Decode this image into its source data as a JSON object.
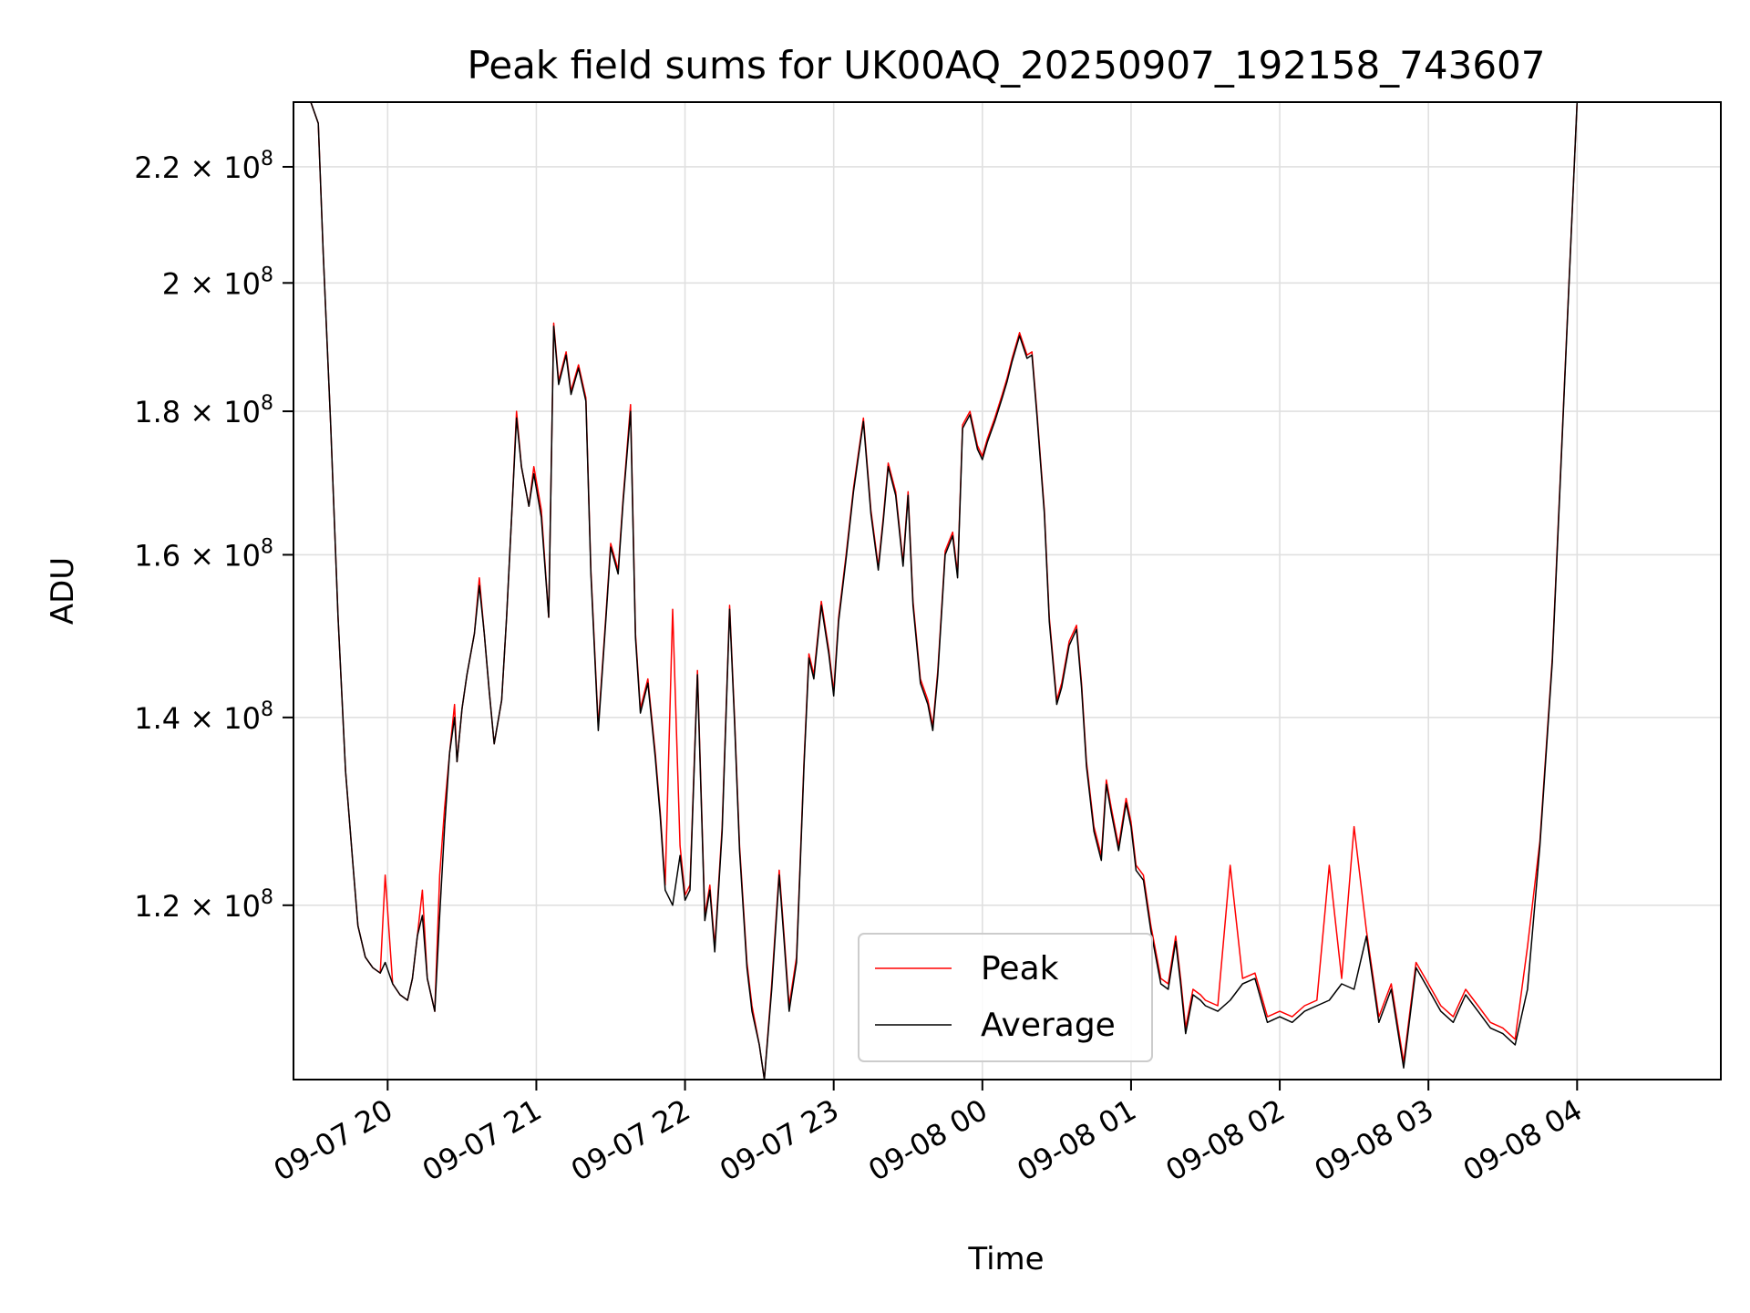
{
  "chart_data": {
    "type": "line",
    "title": "Peak field sums for UK00AQ_20250907_192158_743607",
    "xlabel": "Time",
    "ylabel": "ADU",
    "y_scale": "log",
    "ylim": [
      104000000,
      232000000
    ],
    "xlim": [
      "2025-09-07 19:22",
      "2025-09-08 04:58"
    ],
    "grid": true,
    "legend_position": "lower-center",
    "x_ticks": [
      {
        "label": "09-07 20",
        "time": "2025-09-07 20:00"
      },
      {
        "label": "09-07 21",
        "time": "2025-09-07 21:00"
      },
      {
        "label": "09-07 22",
        "time": "2025-09-07 22:00"
      },
      {
        "label": "09-07 23",
        "time": "2025-09-07 23:00"
      },
      {
        "label": "09-08 00",
        "time": "2025-09-08 00:00"
      },
      {
        "label": "09-08 01",
        "time": "2025-09-08 01:00"
      },
      {
        "label": "09-08 02",
        "time": "2025-09-08 02:00"
      },
      {
        "label": "09-08 03",
        "time": "2025-09-08 03:00"
      },
      {
        "label": "09-08 04",
        "time": "2025-09-08 04:00"
      }
    ],
    "y_ticks": [
      {
        "mantissa": "1.2",
        "exponent": "8",
        "value": 120000000
      },
      {
        "mantissa": "1.4",
        "exponent": "8",
        "value": 140000000
      },
      {
        "mantissa": "1.6",
        "exponent": "8",
        "value": 160000000
      },
      {
        "mantissa": "1.8",
        "exponent": "8",
        "value": 180000000
      },
      {
        "mantissa": "2",
        "exponent": "8",
        "value": 200000000
      },
      {
        "mantissa": "2.2",
        "exponent": "8",
        "value": 220000000
      }
    ],
    "times_x": [
      "2025-09-07 19:29",
      "2025-09-07 19:32",
      "2025-09-07 19:34",
      "2025-09-07 19:37",
      "2025-09-07 19:40",
      "2025-09-07 19:43",
      "2025-09-07 19:46",
      "2025-09-07 19:48",
      "2025-09-07 19:51",
      "2025-09-07 19:54",
      "2025-09-07 19:57",
      "2025-09-07 19:59",
      "2025-09-07 20:02",
      "2025-09-07 20:05",
      "2025-09-07 20:08",
      "2025-09-07 20:10",
      "2025-09-07 20:12",
      "2025-09-07 20:14",
      "2025-09-07 20:16",
      "2025-09-07 20:19",
      "2025-09-07 20:21",
      "2025-09-07 20:23",
      "2025-09-07 20:25",
      "2025-09-07 20:27",
      "2025-09-07 20:28",
      "2025-09-07 20:30",
      "2025-09-07 20:32",
      "2025-09-07 20:35",
      "2025-09-07 20:37",
      "2025-09-07 20:39",
      "2025-09-07 20:41",
      "2025-09-07 20:43",
      "2025-09-07 20:46",
      "2025-09-07 20:48",
      "2025-09-07 20:50",
      "2025-09-07 20:52",
      "2025-09-07 20:54",
      "2025-09-07 20:57",
      "2025-09-07 20:59",
      "2025-09-07 21:02",
      "2025-09-07 21:05",
      "2025-09-07 21:07",
      "2025-09-07 21:09",
      "2025-09-07 21:12",
      "2025-09-07 21:14",
      "2025-09-07 21:17",
      "2025-09-07 21:20",
      "2025-09-07 21:22",
      "2025-09-07 21:25",
      "2025-09-07 21:28",
      "2025-09-07 21:30",
      "2025-09-07 21:33",
      "2025-09-07 21:35",
      "2025-09-07 21:38",
      "2025-09-07 21:40",
      "2025-09-07 21:42",
      "2025-09-07 21:45",
      "2025-09-07 21:48",
      "2025-09-07 21:50",
      "2025-09-07 21:52",
      "2025-09-07 21:55",
      "2025-09-07 21:58",
      "2025-09-07 22:00",
      "2025-09-07 22:02",
      "2025-09-07 22:05",
      "2025-09-07 22:08",
      "2025-09-07 22:10",
      "2025-09-07 22:12",
      "2025-09-07 22:15",
      "2025-09-07 22:18",
      "2025-09-07 22:20",
      "2025-09-07 22:22",
      "2025-09-07 22:25",
      "2025-09-07 22:27",
      "2025-09-07 22:30",
      "2025-09-07 22:32",
      "2025-09-07 22:35",
      "2025-09-07 22:38",
      "2025-09-07 22:40",
      "2025-09-07 22:42",
      "2025-09-07 22:45",
      "2025-09-07 22:48",
      "2025-09-07 22:50",
      "2025-09-07 22:52",
      "2025-09-07 22:55",
      "2025-09-07 22:58",
      "2025-09-07 23:00",
      "2025-09-07 23:02",
      "2025-09-07 23:05",
      "2025-09-07 23:08",
      "2025-09-07 23:10",
      "2025-09-07 23:12",
      "2025-09-07 23:15",
      "2025-09-07 23:18",
      "2025-09-07 23:20",
      "2025-09-07 23:22",
      "2025-09-07 23:25",
      "2025-09-07 23:28",
      "2025-09-07 23:30",
      "2025-09-07 23:32",
      "2025-09-07 23:35",
      "2025-09-07 23:38",
      "2025-09-07 23:40",
      "2025-09-07 23:42",
      "2025-09-07 23:45",
      "2025-09-07 23:48",
      "2025-09-07 23:50",
      "2025-09-07 23:52",
      "2025-09-07 23:55",
      "2025-09-07 23:58",
      "2025-09-08 00:00",
      "2025-09-08 00:02",
      "2025-09-08 00:05",
      "2025-09-08 00:08",
      "2025-09-08 00:10",
      "2025-09-08 00:12",
      "2025-09-08 00:15",
      "2025-09-08 00:18",
      "2025-09-08 00:20",
      "2025-09-08 00:22",
      "2025-09-08 00:25",
      "2025-09-08 00:27",
      "2025-09-08 00:30",
      "2025-09-08 00:32",
      "2025-09-08 00:35",
      "2025-09-08 00:38",
      "2025-09-08 00:40",
      "2025-09-08 00:42",
      "2025-09-08 00:45",
      "2025-09-08 00:48",
      "2025-09-08 00:50",
      "2025-09-08 00:52",
      "2025-09-08 00:55",
      "2025-09-08 00:58",
      "2025-09-08 01:00",
      "2025-09-08 01:02",
      "2025-09-08 01:05",
      "2025-09-08 01:08",
      "2025-09-08 01:10",
      "2025-09-08 01:12",
      "2025-09-08 01:15",
      "2025-09-08 01:18",
      "2025-09-08 01:20",
      "2025-09-08 01:22",
      "2025-09-08 01:25",
      "2025-09-08 01:28",
      "2025-09-08 01:30",
      "2025-09-08 01:35",
      "2025-09-08 01:40",
      "2025-09-08 01:45",
      "2025-09-08 01:50",
      "2025-09-08 01:55",
      "2025-09-08 02:00",
      "2025-09-08 02:05",
      "2025-09-08 02:10",
      "2025-09-08 02:15",
      "2025-09-08 02:20",
      "2025-09-08 02:25",
      "2025-09-08 02:30",
      "2025-09-08 02:35",
      "2025-09-08 02:40",
      "2025-09-08 02:45",
      "2025-09-08 02:50",
      "2025-09-08 02:55",
      "2025-09-08 03:00",
      "2025-09-08 03:05",
      "2025-09-08 03:10",
      "2025-09-08 03:15",
      "2025-09-08 03:20",
      "2025-09-08 03:25",
      "2025-09-08 03:30",
      "2025-09-08 03:35",
      "2025-09-08 03:40",
      "2025-09-08 03:45",
      "2025-09-08 03:50",
      "2025-09-08 03:55",
      "2025-09-08 04:00",
      "2025-09-08 04:05",
      "2025-09-08 04:10",
      "2025-09-08 04:15",
      "2025-09-08 04:20",
      "2025-09-08 04:25",
      "2025-09-08 04:30",
      "2025-09-08 04:35",
      "2025-09-08 04:40",
      "2025-09-08 04:45",
      "2025-09-08 04:50",
      "2025-09-08 04:53"
    ],
    "series": [
      {
        "name": "Peak",
        "color": "#ff0000",
        "values": [
          232000000,
          228000000,
          205000000,
          178000000,
          152000000,
          134000000,
          124000000,
          118000000,
          115000000,
          114000000,
          113500000,
          123000000,
          112500000,
          111500000,
          111000000,
          113000000,
          117000000,
          121500000,
          113000000,
          110000000,
          123000000,
          130000000,
          136000000,
          141500000,
          135000000,
          141000000,
          145000000,
          150000000,
          157000000,
          150000000,
          143000000,
          137000000,
          142000000,
          152000000,
          165000000,
          180000000,
          172000000,
          166500000,
          172000000,
          166000000,
          152000000,
          193500000,
          184500000,
          189000000,
          183000000,
          187000000,
          182000000,
          158000000,
          139000000,
          152000000,
          161500000,
          158000000,
          167500000,
          181000000,
          150000000,
          141000000,
          144500000,
          136000000,
          129500000,
          122000000,
          153000000,
          126000000,
          121000000,
          122000000,
          145500000,
          119000000,
          122000000,
          116000000,
          128000000,
          153500000,
          140000000,
          126000000,
          114500000,
          110500000,
          107000000,
          103800000,
          112500000,
          123500000,
          117000000,
          110500000,
          115000000,
          135000000,
          147500000,
          145000000,
          154000000,
          148000000,
          143000000,
          152000000,
          160000000,
          169000000,
          174000000,
          179000000,
          166000000,
          158500000,
          165000000,
          172500000,
          168500000,
          159000000,
          168500000,
          154000000,
          144500000,
          142000000,
          139000000,
          145500000,
          160500000,
          163000000,
          157500000,
          178000000,
          180000000,
          175000000,
          173500000,
          176000000,
          179000000,
          182500000,
          185000000,
          188000000,
          192000000,
          188500000,
          189000000,
          180000000,
          166000000,
          152000000,
          142000000,
          144000000,
          149000000,
          151000000,
          144000000,
          135000000,
          128000000,
          125000000,
          133000000,
          130000000,
          126000000,
          131000000,
          128500000,
          124000000,
          123000000,
          118000000,
          115500000,
          113000000,
          112500000,
          117000000,
          113000000,
          108500000,
          112000000,
          111500000,
          111000000,
          110500000,
          124000000,
          113000000,
          113500000,
          109500000,
          110000000,
          109500000,
          110500000,
          111000000,
          124000000,
          113000000,
          128000000,
          117500000,
          109500000,
          112500000,
          105500000,
          114500000,
          112500000,
          110500000,
          109500000,
          112000000,
          110500000,
          109000000,
          108500000,
          107500000,
          116000000,
          126500000,
          147000000,
          185000000,
          232000000,
          232000000,
          232000000,
          232000000,
          232000000,
          232000000,
          232000000,
          232000000,
          232000000,
          232000000,
          232000000,
          232000000
        ]
      },
      {
        "name": "Average",
        "color": "#000000",
        "values": [
          232000000,
          228000000,
          205000000,
          178000000,
          152000000,
          134000000,
          124000000,
          118000000,
          115000000,
          114000000,
          113500000,
          114500000,
          112500000,
          111500000,
          111000000,
          113000000,
          117000000,
          119000000,
          113000000,
          110000000,
          119000000,
          128000000,
          136000000,
          140000000,
          135000000,
          141000000,
          145000000,
          150000000,
          156000000,
          150000000,
          143000000,
          137000000,
          142000000,
          152000000,
          165000000,
          179000000,
          172000000,
          166500000,
          171000000,
          165000000,
          152000000,
          193000000,
          184000000,
          188500000,
          182500000,
          186500000,
          181500000,
          157500000,
          138500000,
          151500000,
          161000000,
          157500000,
          167000000,
          180000000,
          149500000,
          140500000,
          144000000,
          135500000,
          129000000,
          121500000,
          120000000,
          125000000,
          120500000,
          121500000,
          145000000,
          118500000,
          121500000,
          115500000,
          127500000,
          153000000,
          139500000,
          125500000,
          114000000,
          110000000,
          107000000,
          103800000,
          112000000,
          123000000,
          116500000,
          110000000,
          114500000,
          134500000,
          147000000,
          144500000,
          153500000,
          147500000,
          142500000,
          151500000,
          159500000,
          168500000,
          173500000,
          178500000,
          165500000,
          158000000,
          164500000,
          172000000,
          168000000,
          158500000,
          168000000,
          153500000,
          144000000,
          141500000,
          138500000,
          145000000,
          160000000,
          162500000,
          157000000,
          177500000,
          179500000,
          174500000,
          173000000,
          175500000,
          178500000,
          182000000,
          184500000,
          187500000,
          191500000,
          188000000,
          188500000,
          179500000,
          165500000,
          151500000,
          141500000,
          143500000,
          148500000,
          150500000,
          143500000,
          134500000,
          127500000,
          124500000,
          132500000,
          129500000,
          125500000,
          130500000,
          128000000,
          123500000,
          122500000,
          117500000,
          115000000,
          112500000,
          112000000,
          116500000,
          112500000,
          108000000,
          111500000,
          111000000,
          110500000,
          110000000,
          111000000,
          112500000,
          113000000,
          109000000,
          109500000,
          109000000,
          110000000,
          110500000,
          111000000,
          112500000,
          112000000,
          117000000,
          109000000,
          112000000,
          105000000,
          114000000,
          112000000,
          110000000,
          109000000,
          111500000,
          110000000,
          108500000,
          108000000,
          107000000,
          112000000,
          126000000,
          146500000,
          184500000,
          232000000,
          232000000,
          232000000,
          232000000,
          232000000,
          232000000,
          232000000,
          232000000,
          232000000,
          232000000,
          232000000,
          232000000
        ]
      }
    ]
  }
}
